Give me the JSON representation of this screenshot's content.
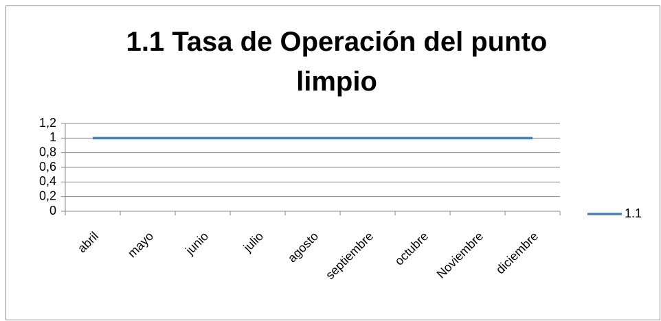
{
  "chart_data": {
    "type": "line",
    "title": "1.1 Tasa de Operación del punto limpio",
    "categories": [
      "abril",
      "mayo",
      "junio",
      "julio",
      "agosto",
      "septiembre",
      "octubre",
      "Noviembre",
      "diciembre"
    ],
    "series": [
      {
        "name": "1.1",
        "color": "#4a7ebb",
        "values": [
          1,
          1,
          1,
          1,
          1,
          1,
          1,
          1,
          1
        ]
      }
    ],
    "ylim": [
      0,
      1.2
    ],
    "yticks": [
      0,
      {
        "value": 0.2,
        "label": "0,2"
      },
      {
        "value": 0.4,
        "label": "0,4"
      },
      {
        "value": 0.6,
        "label": "0,6"
      },
      {
        "value": 0.8,
        "label": "0,8"
      },
      1,
      {
        "value": 1.2,
        "label": "1,2"
      }
    ],
    "grid": true,
    "legend": "right"
  }
}
